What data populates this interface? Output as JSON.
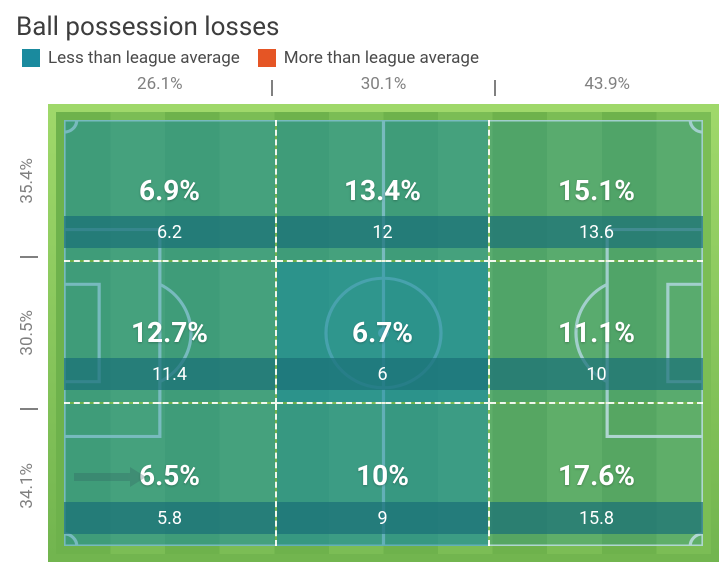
{
  "title": "Ball possession losses",
  "legend": {
    "less": {
      "label": "Less than league average",
      "color": "#1a8a9e"
    },
    "more": {
      "label": "More than league average",
      "color": "#e55525"
    }
  },
  "columns": [
    "26.1%",
    "30.1%",
    "43.9%"
  ],
  "rows": [
    "35.4%",
    "30.5%",
    "34.1%"
  ],
  "cells": [
    {
      "pct": "6.9%",
      "raw": "6.2",
      "overlay": "#1a8a9e",
      "overlay_opacity": 0.55,
      "band_bg": "#1a6f78"
    },
    {
      "pct": "13.4%",
      "raw": "12",
      "overlay": "#1a8a9e",
      "overlay_opacity": 0.55,
      "band_bg": "#1a6f78"
    },
    {
      "pct": "15.1%",
      "raw": "13.6",
      "overlay": "#1a8a9e",
      "overlay_opacity": 0.35,
      "band_bg": "#1a6f78"
    },
    {
      "pct": "12.7%",
      "raw": "11.4",
      "overlay": "#1a8a9e",
      "overlay_opacity": 0.55,
      "band_bg": "#1a6f78"
    },
    {
      "pct": "6.7%",
      "raw": "6",
      "overlay": "#1a8a9e",
      "overlay_opacity": 0.78,
      "band_bg": "#1a6f78"
    },
    {
      "pct": "11.1%",
      "raw": "10",
      "overlay": "#1a8a9e",
      "overlay_opacity": 0.35,
      "band_bg": "#1a6f78"
    },
    {
      "pct": "6.5%",
      "raw": "5.8",
      "overlay": "#1a8a9e",
      "overlay_opacity": 0.55,
      "band_bg": "#1a6f78"
    },
    {
      "pct": "10%",
      "raw": "9",
      "overlay": "#1a8a9e",
      "overlay_opacity": 0.65,
      "band_bg": "#1a6f78"
    },
    {
      "pct": "17.6%",
      "raw": "15.8",
      "overlay": "#1a8a9e",
      "overlay_opacity": 0.28,
      "band_bg": "#1a6f78"
    }
  ],
  "pitch": {
    "grass_a": "#6eb24c",
    "grass_b": "#7bbd55",
    "border_top": "#9fd86a",
    "border_bottom": "#72b54f",
    "line_color": "#ffffff",
    "line_opacity": 0.85
  },
  "arrow": {
    "zone_index": 6,
    "color": "#305b5e",
    "opacity": 0.28
  }
}
